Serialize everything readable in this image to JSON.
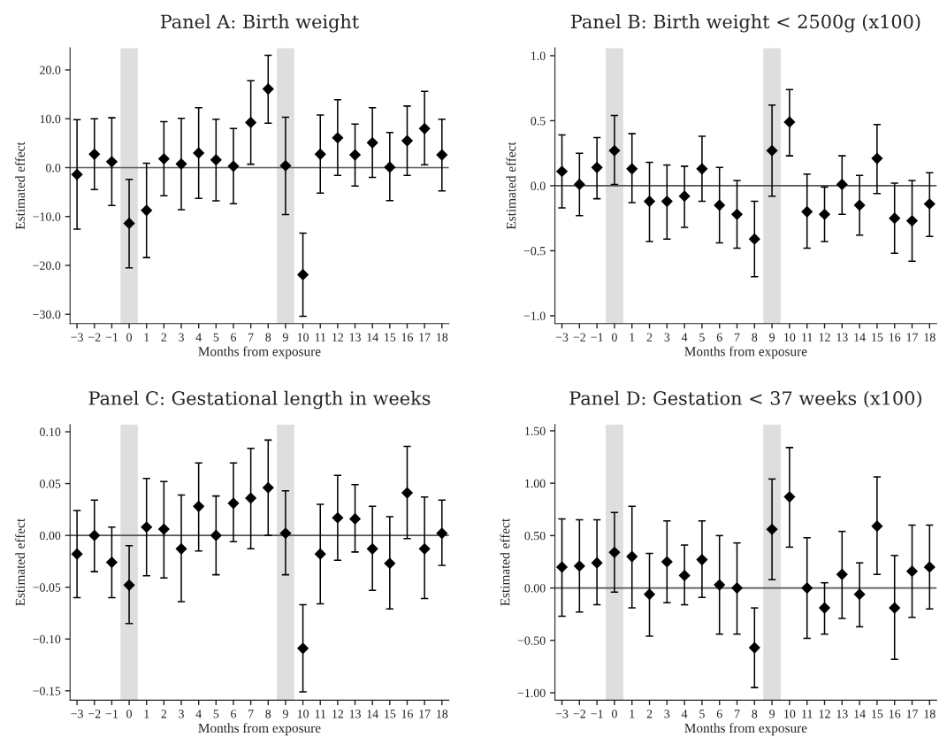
{
  "chart_data": [
    {
      "type": "scatter",
      "title": "Panel A: Birth weight",
      "xlabel": "Months from exposure",
      "ylabel": "Estimated effect",
      "marker": "diamond",
      "grid": false,
      "legend": false,
      "x": [
        -3,
        -2,
        -1,
        0,
        1,
        2,
        3,
        4,
        5,
        6,
        7,
        8,
        9,
        10,
        11,
        12,
        13,
        14,
        15,
        16,
        17,
        18
      ],
      "xlim": [
        -3.4,
        18.4
      ],
      "xticks": [
        {
          "value": -3,
          "label": "−3"
        },
        {
          "value": -2,
          "label": "−2"
        },
        {
          "value": -1,
          "label": "−1"
        },
        0,
        1,
        2,
        3,
        4,
        5,
        6,
        7,
        8,
        9,
        10,
        11,
        12,
        13,
        14,
        15,
        16,
        17,
        18
      ],
      "ylim": [
        -31.9,
        24.5
      ],
      "yticks": [
        {
          "value": -30,
          "label": "−30.0"
        },
        {
          "value": -20,
          "label": "−20.0"
        },
        {
          "value": -10,
          "label": "−10.0"
        },
        {
          "value": 0,
          "label": "0.0"
        },
        {
          "value": 10,
          "label": "10.0"
        },
        {
          "value": 20,
          "label": "20.0"
        }
      ],
      "series": [
        {
          "color": "#000000",
          "values": [
            -1.4,
            2.75,
            1.2,
            -11.4,
            -8.75,
            1.8,
            0.75,
            3.0,
            1.6,
            0.3,
            9.25,
            16.1,
            0.4,
            -21.9,
            2.75,
            6.1,
            2.6,
            5.1,
            0.1,
            5.5,
            8.0,
            2.6
          ],
          "errors": [
            [
              -12.6,
              9.8
            ],
            [
              -4.5,
              10.0
            ],
            [
              -7.75,
              10.2
            ],
            [
              -20.5,
              -2.4
            ],
            [
              -18.4,
              0.9
            ],
            [
              -5.75,
              9.4
            ],
            [
              -8.6,
              10.1
            ],
            [
              -6.3,
              12.25
            ],
            [
              -6.8,
              9.9
            ],
            [
              -7.4,
              8.0
            ],
            [
              0.7,
              17.8
            ],
            [
              9.1,
              23.0
            ],
            [
              -9.6,
              10.3
            ],
            [
              -30.4,
              -13.4
            ],
            [
              -5.2,
              10.75
            ],
            [
              -1.6,
              13.9
            ],
            [
              -3.75,
              8.9
            ],
            [
              -2.0,
              12.25
            ],
            [
              -6.75,
              7.2
            ],
            [
              -1.6,
              12.6
            ],
            [
              0.6,
              15.6
            ],
            [
              -4.75,
              9.9
            ]
          ]
        }
      ],
      "ref_lines": [
        {
          "axis": "y",
          "value": 0,
          "color": "#555555"
        }
      ],
      "bands": [
        {
          "axis": "x",
          "from": -0.5,
          "to": 0.5,
          "color": "#dedede"
        },
        {
          "axis": "x",
          "from": 8.5,
          "to": 9.5,
          "color": "#dedede"
        }
      ]
    },
    {
      "type": "scatter",
      "title": "Panel B: Birth weight < 2500g (x100)",
      "xlabel": "Months from exposure",
      "ylabel": "Estimated effect",
      "marker": "diamond",
      "grid": false,
      "legend": false,
      "x": [
        -3,
        -2,
        -1,
        0,
        1,
        2,
        3,
        4,
        5,
        6,
        7,
        8,
        9,
        10,
        11,
        12,
        13,
        14,
        15,
        16,
        17,
        18
      ],
      "xlim": [
        -3.4,
        18.4
      ],
      "xticks": [
        {
          "value": -3,
          "label": "−3"
        },
        {
          "value": -2,
          "label": "−2"
        },
        {
          "value": -1,
          "label": "−1"
        },
        0,
        1,
        2,
        3,
        4,
        5,
        6,
        7,
        8,
        9,
        10,
        11,
        12,
        13,
        14,
        15,
        16,
        17,
        18
      ],
      "ylim": [
        -1.06,
        1.06
      ],
      "yticks": [
        {
          "value": -1,
          "label": "−1.0"
        },
        {
          "value": -0.5,
          "label": "−0.5"
        },
        {
          "value": 0,
          "label": "0.0"
        },
        {
          "value": 0.5,
          "label": "0.5"
        },
        {
          "value": 1,
          "label": "1.0"
        }
      ],
      "series": [
        {
          "color": "#000000",
          "values": [
            0.11,
            0.01,
            0.14,
            0.27,
            0.13,
            -0.12,
            -0.12,
            -0.08,
            0.13,
            -0.15,
            -0.22,
            -0.41,
            0.27,
            0.49,
            -0.2,
            -0.22,
            0.01,
            -0.15,
            0.21,
            -0.25,
            -0.27,
            -0.14
          ],
          "errors": [
            [
              -0.17,
              0.39
            ],
            [
              -0.23,
              0.25
            ],
            [
              -0.1,
              0.37
            ],
            [
              0.01,
              0.54
            ],
            [
              -0.13,
              0.4
            ],
            [
              -0.43,
              0.18
            ],
            [
              -0.41,
              0.16
            ],
            [
              -0.32,
              0.15
            ],
            [
              -0.12,
              0.38
            ],
            [
              -0.44,
              0.14
            ],
            [
              -0.48,
              0.04
            ],
            [
              -0.7,
              -0.12
            ],
            [
              -0.08,
              0.62
            ],
            [
              0.23,
              0.74
            ],
            [
              -0.48,
              0.09
            ],
            [
              -0.43,
              -0.01
            ],
            [
              -0.22,
              0.23
            ],
            [
              -0.38,
              0.08
            ],
            [
              -0.06,
              0.47
            ],
            [
              -0.52,
              0.02
            ],
            [
              -0.58,
              0.04
            ],
            [
              -0.39,
              0.1
            ]
          ]
        }
      ],
      "ref_lines": [
        {
          "axis": "y",
          "value": 0,
          "color": "#555555"
        }
      ],
      "bands": [
        {
          "axis": "x",
          "from": -0.5,
          "to": 0.5,
          "color": "#dedede"
        },
        {
          "axis": "x",
          "from": 8.5,
          "to": 9.5,
          "color": "#dedede"
        }
      ]
    },
    {
      "type": "scatter",
      "title": "Panel C: Gestational length in weeks",
      "xlabel": "Months from exposure",
      "ylabel": "Estimated effect",
      "marker": "diamond",
      "grid": false,
      "legend": false,
      "x": [
        -3,
        -2,
        -1,
        0,
        1,
        2,
        3,
        4,
        5,
        6,
        7,
        8,
        9,
        10,
        11,
        12,
        13,
        14,
        15,
        16,
        17,
        18
      ],
      "xlim": [
        -3.4,
        18.4
      ],
      "xticks": [
        {
          "value": -3,
          "label": "−3"
        },
        {
          "value": -2,
          "label": "−2"
        },
        {
          "value": -1,
          "label": "−1"
        },
        0,
        1,
        2,
        3,
        4,
        5,
        6,
        7,
        8,
        9,
        10,
        11,
        12,
        13,
        14,
        15,
        16,
        17,
        18
      ],
      "ylim": [
        -0.159,
        0.107
      ],
      "yticks": [
        {
          "value": -0.15,
          "label": "−0.15"
        },
        {
          "value": -0.1,
          "label": "−0.10"
        },
        {
          "value": -0.05,
          "label": "−0.05"
        },
        {
          "value": 0,
          "label": "0.00"
        },
        {
          "value": 0.05,
          "label": "0.05"
        },
        {
          "value": 0.1,
          "label": "0.10"
        }
      ],
      "series": [
        {
          "color": "#000000",
          "values": [
            -0.018,
            0.0,
            -0.026,
            -0.048,
            0.008,
            0.006,
            -0.013,
            0.028,
            0.0,
            0.031,
            0.036,
            0.046,
            0.002,
            -0.109,
            -0.018,
            0.017,
            0.016,
            -0.013,
            -0.027,
            0.041,
            -0.013,
            0.002
          ],
          "errors": [
            [
              -0.06,
              0.024
            ],
            [
              -0.035,
              0.034
            ],
            [
              -0.06,
              0.008
            ],
            [
              -0.085,
              -0.01
            ],
            [
              -0.039,
              0.055
            ],
            [
              -0.041,
              0.052
            ],
            [
              -0.064,
              0.039
            ],
            [
              -0.015,
              0.07
            ],
            [
              -0.038,
              0.038
            ],
            [
              -0.006,
              0.07
            ],
            [
              -0.013,
              0.084
            ],
            [
              0.0,
              0.092
            ],
            [
              -0.038,
              0.043
            ],
            [
              -0.151,
              -0.067
            ],
            [
              -0.066,
              0.03
            ],
            [
              -0.024,
              0.058
            ],
            [
              -0.016,
              0.049
            ],
            [
              -0.053,
              0.028
            ],
            [
              -0.071,
              0.018
            ],
            [
              -0.003,
              0.086
            ],
            [
              -0.061,
              0.037
            ],
            [
              -0.029,
              0.034
            ]
          ]
        }
      ],
      "ref_lines": [
        {
          "axis": "y",
          "value": 0,
          "color": "#555555"
        }
      ],
      "bands": [
        {
          "axis": "x",
          "from": -0.5,
          "to": 0.5,
          "color": "#dedede"
        },
        {
          "axis": "x",
          "from": 8.5,
          "to": 9.5,
          "color": "#dedede"
        }
      ]
    },
    {
      "type": "scatter",
      "title": "Panel D: Gestation < 37 weeks (x100)",
      "xlabel": "Months from exposure",
      "ylabel": "Estimated effect",
      "marker": "diamond",
      "grid": false,
      "legend": false,
      "x": [
        -3,
        -2,
        -1,
        0,
        1,
        2,
        3,
        4,
        5,
        6,
        7,
        8,
        9,
        10,
        11,
        12,
        13,
        14,
        15,
        16,
        17,
        18
      ],
      "xlim": [
        -3.4,
        18.4
      ],
      "xticks": [
        {
          "value": -3,
          "label": "−3"
        },
        {
          "value": -2,
          "label": "−2"
        },
        {
          "value": -1,
          "label": "−1"
        },
        0,
        1,
        2,
        3,
        4,
        5,
        6,
        7,
        8,
        9,
        10,
        11,
        12,
        13,
        14,
        15,
        16,
        17,
        18
      ],
      "ylim": [
        -1.07,
        1.56
      ],
      "yticks": [
        {
          "value": -1,
          "label": "−1.00"
        },
        {
          "value": -0.5,
          "label": "−0.50"
        },
        {
          "value": 0,
          "label": "0.00"
        },
        {
          "value": 0.5,
          "label": "0.50"
        },
        {
          "value": 1,
          "label": "1.00"
        },
        {
          "value": 1.5,
          "label": "1.50"
        }
      ],
      "series": [
        {
          "color": "#000000",
          "values": [
            0.2,
            0.21,
            0.24,
            0.34,
            0.3,
            -0.06,
            0.25,
            0.12,
            0.27,
            0.03,
            0.0,
            -0.57,
            0.56,
            0.87,
            0.0,
            -0.19,
            0.13,
            -0.06,
            0.59,
            -0.19,
            0.16,
            0.2
          ],
          "errors": [
            [
              -0.27,
              0.66
            ],
            [
              -0.23,
              0.65
            ],
            [
              -0.16,
              0.65
            ],
            [
              -0.04,
              0.72
            ],
            [
              -0.19,
              0.78
            ],
            [
              -0.46,
              0.33
            ],
            [
              -0.14,
              0.64
            ],
            [
              -0.16,
              0.41
            ],
            [
              -0.09,
              0.64
            ],
            [
              -0.44,
              0.5
            ],
            [
              -0.44,
              0.43
            ],
            [
              -0.95,
              -0.19
            ],
            [
              0.08,
              1.04
            ],
            [
              0.39,
              1.34
            ],
            [
              -0.48,
              0.48
            ],
            [
              -0.44,
              0.05
            ],
            [
              -0.29,
              0.54
            ],
            [
              -0.37,
              0.24
            ],
            [
              0.13,
              1.06
            ],
            [
              -0.68,
              0.31
            ],
            [
              -0.28,
              0.6
            ],
            [
              -0.2,
              0.6
            ]
          ]
        }
      ],
      "ref_lines": [
        {
          "axis": "y",
          "value": 0,
          "color": "#555555"
        }
      ],
      "bands": [
        {
          "axis": "x",
          "from": -0.5,
          "to": 0.5,
          "color": "#dedede"
        },
        {
          "axis": "x",
          "from": 8.5,
          "to": 9.5,
          "color": "#dedede"
        }
      ]
    }
  ]
}
